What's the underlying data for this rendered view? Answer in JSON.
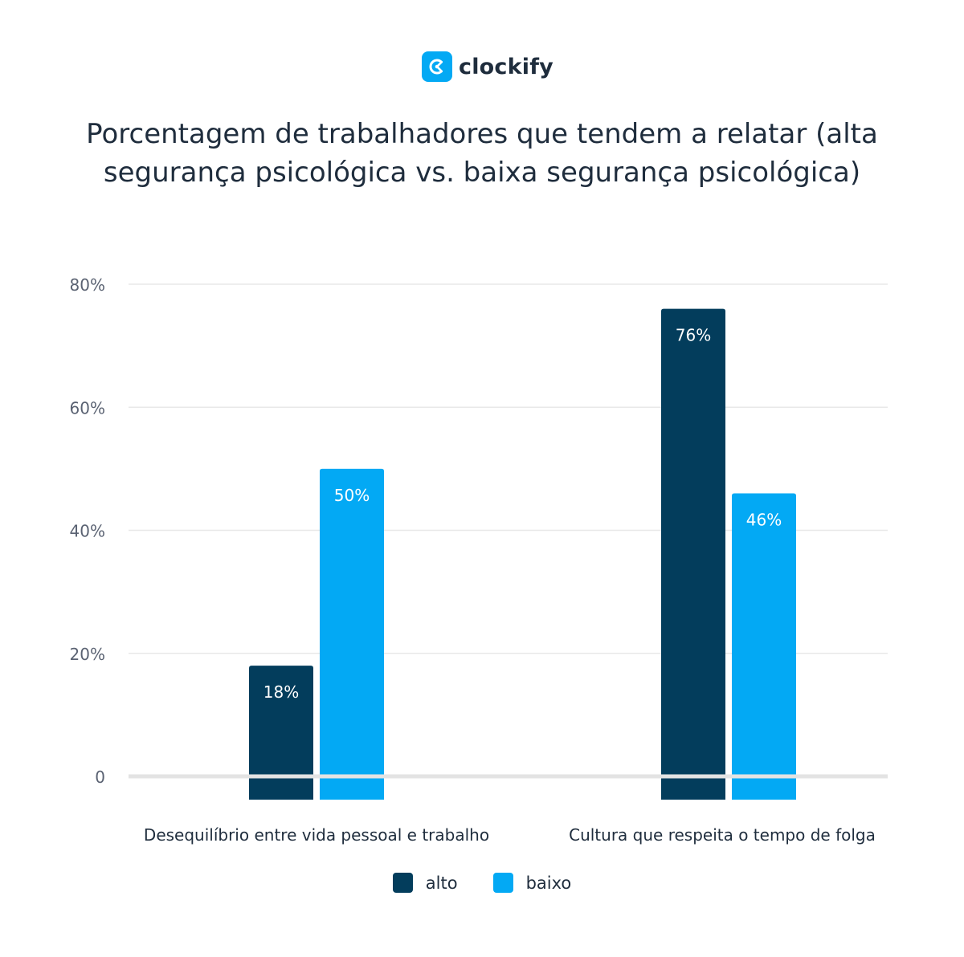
{
  "brand": {
    "name": "clockify",
    "color": "#03a9f4"
  },
  "chart_data": {
    "type": "bar",
    "title": "Porcentagem de trabalhadores que tendem a relatar (alta segurança psicológica vs. baixa segurança psicológica)",
    "categories": [
      "Desequilíbrio entre vida pessoal e trabalho",
      "Cultura que respeita o tempo de folga"
    ],
    "series": [
      {
        "name": "alto",
        "color": "#033d5c",
        "values": [
          18,
          76
        ],
        "labels": [
          "18%",
          "76%"
        ]
      },
      {
        "name": "baixo",
        "color": "#03a9f4",
        "values": [
          50,
          46
        ],
        "labels": [
          "50%",
          "46%"
        ]
      }
    ],
    "ylim": [
      0,
      80
    ],
    "yticks": [
      0,
      20,
      40,
      60,
      80
    ],
    "ytick_labels": [
      "0",
      "20%",
      "40%",
      "60%",
      "80%"
    ],
    "xlabel": "",
    "ylabel": "",
    "grid": true,
    "legend_position": "bottom-center"
  }
}
